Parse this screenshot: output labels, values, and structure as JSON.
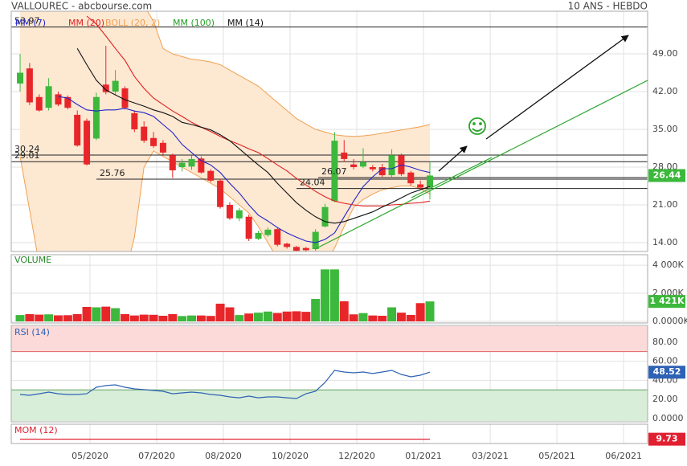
{
  "chart_data": [
    {
      "type": "candlestick",
      "title": "VALLOUREC - abcbourse.com",
      "subtitle": "10 ANS - HEBDO",
      "up_color": "#3cb83c",
      "down_color": "#e8262a",
      "open": [
        43.5,
        46.3,
        41,
        39,
        41.5,
        41,
        37.7,
        36.6,
        33.3,
        43.3,
        42,
        42.6,
        38,
        35.5,
        33.4,
        32.5,
        30.2,
        28,
        28.1,
        29.6,
        27.3,
        25.5,
        21,
        18.5,
        18.8,
        14.7,
        15.4,
        16.5,
        13.8,
        13.2,
        13,
        12.8,
        17,
        21.7,
        30.7,
        28.5,
        28.1,
        28,
        28,
        26.5,
        30.2,
        27,
        24.8,
        24.3
      ],
      "high": [
        49,
        47.3,
        41.5,
        44.5,
        42,
        41.3,
        38.5,
        37,
        41.8,
        50.5,
        46,
        43,
        38.5,
        36.5,
        34.5,
        33,
        30.5,
        29.5,
        30.2,
        30,
        27.6,
        25.8,
        21.5,
        20.4,
        19.2,
        16.2,
        16.8,
        16.8,
        14,
        13.4,
        13.2,
        16.5,
        21.2,
        34.5,
        33,
        29.5,
        31.5,
        28.4,
        28.6,
        31.3,
        30.5,
        27.3,
        25.5,
        29
      ],
      "low": [
        42,
        39.5,
        38.3,
        38.5,
        39.3,
        38.7,
        31.8,
        28.3,
        33,
        41.5,
        41.5,
        38.7,
        34.5,
        32.5,
        31.6,
        30.3,
        26,
        27.2,
        27.5,
        26.8,
        25.2,
        20.3,
        18.2,
        18,
        14.3,
        14.5,
        15.1,
        13.3,
        12.9,
        12.2,
        12.4,
        12.5,
        16.8,
        21.5,
        29,
        27.6,
        27.8,
        27.2,
        26.2,
        26.2,
        26.4,
        24.6,
        23.8,
        22
      ],
      "close": [
        45.5,
        40,
        38.5,
        43,
        39.6,
        39,
        32,
        28.5,
        41,
        41.9,
        44,
        39,
        35,
        32.9,
        31.9,
        30.7,
        27.4,
        28.8,
        29.5,
        27,
        25.5,
        20.6,
        18.5,
        20,
        14.7,
        15.8,
        16.4,
        13.6,
        13.2,
        12.5,
        12.6,
        16,
        20.6,
        32.9,
        29.5,
        28,
        28.9,
        27.6,
        26.5,
        30.2,
        26.7,
        25,
        24.2,
        26.44
      ],
      "series": [
        {
          "name": "MM (7)",
          "color": "#2323c8",
          "values": [
            null,
            null,
            null,
            null,
            41.1,
            40.8,
            39.6,
            38.6,
            38.4,
            38.6,
            38.6,
            38.9,
            38.4,
            38.1,
            37.4,
            35.9,
            34.4,
            32.2,
            30.7,
            29.2,
            28.4,
            27,
            25,
            23.2,
            21,
            19.1,
            18,
            16.8,
            15.8,
            15,
            14.3,
            14,
            14.6,
            15.8,
            18.8,
            21.7,
            24.4,
            26.2,
            27.7,
            27.7,
            28.4,
            28,
            27.4,
            27
          ]
        },
        {
          "name": "MM (20)",
          "color": "#e02020",
          "values": [
            null,
            null,
            null,
            null,
            null,
            null,
            null,
            56,
            54.5,
            52.3,
            50,
            47.8,
            44.8,
            42.6,
            40.8,
            39.6,
            38.4,
            37.4,
            36.3,
            35.4,
            34.6,
            33.7,
            32.9,
            32.2,
            31.4,
            30.7,
            29.6,
            28.4,
            27.3,
            25.9,
            24.7,
            23.5,
            22.5,
            21.7,
            21.3,
            21,
            20.8,
            20.8,
            20.8,
            21,
            21.1,
            21.3,
            21.4,
            21.7
          ]
        },
        {
          "name": "MM (100)",
          "color": "#22a022",
          "values": [
            null,
            null,
            null,
            null,
            null,
            null,
            null,
            null,
            null,
            null,
            null,
            null,
            null,
            null,
            null,
            null,
            null,
            null,
            null,
            null,
            null,
            null,
            null,
            null,
            null,
            null,
            null,
            null,
            null,
            null,
            null,
            null,
            null,
            null,
            null,
            null,
            null,
            null,
            null,
            null,
            null,
            null,
            null,
            null
          ]
        },
        {
          "name": "MM (14)",
          "color": "#111111",
          "values": [
            null,
            null,
            null,
            null,
            null,
            null,
            50,
            47,
            44.1,
            42.3,
            41.4,
            40.5,
            39.9,
            39.3,
            38.6,
            38.1,
            37.4,
            36.3,
            35.9,
            35.4,
            34.9,
            34,
            32.9,
            31.4,
            29.9,
            28.4,
            27,
            25,
            23.2,
            21.4,
            20,
            18.8,
            17.9,
            17.6,
            17.9,
            18.5,
            19.1,
            19.7,
            20.6,
            21.4,
            22.3,
            23.2,
            23.8,
            24.4
          ]
        }
      ],
      "band": {
        "name": "BOLL (20, 2)",
        "color": "#f0a050",
        "fill": "#fde8d2",
        "upper": [
          58,
          58,
          58,
          58,
          58,
          58,
          58,
          58,
          58,
          58,
          58,
          58,
          58,
          58,
          55,
          50,
          49,
          48.5,
          48,
          47.8,
          47.5,
          47,
          46,
          45,
          44,
          43,
          41.5,
          40,
          38.5,
          37,
          36,
          35,
          34.5,
          34,
          33.8,
          33.7,
          33.8,
          34,
          34.3,
          34.6,
          34.9,
          35.2,
          35.5,
          35.9
        ],
        "lower": [
          30,
          20,
          10,
          8,
          8,
          8,
          8,
          8,
          8,
          8,
          8,
          8,
          15,
          28,
          31,
          30,
          29,
          28,
          27,
          26,
          25,
          24,
          22.5,
          21,
          19.5,
          17,
          14,
          11,
          9,
          8,
          8,
          8,
          10,
          13,
          17,
          20.5,
          22,
          23,
          23.8,
          24.2,
          24.5,
          24.5,
          24,
          23
        ]
      },
      "levels": [
        53.97,
        30.24,
        29.01,
        25.76,
        26.07,
        24.04
      ],
      "xlim": [
        -0.93,
        65.85
      ],
      "xticks": [
        {
          "value": 7.33,
          "label": "05/2020"
        },
        {
          "value": 14.33,
          "label": "07/2020"
        },
        {
          "value": 21.33,
          "label": "08/2020"
        },
        {
          "value": 28.33,
          "label": "10/2020"
        },
        {
          "value": 35.33,
          "label": "12/2020"
        },
        {
          "value": 42.33,
          "label": "01/2021"
        },
        {
          "value": 49.33,
          "label": "03/2021"
        },
        {
          "value": 56.33,
          "label": "05/2021"
        },
        {
          "value": 63.33,
          "label": "06/2021"
        }
      ],
      "ylim": [
        12.36,
        56.9
      ],
      "yticks": [
        {
          "value": 49,
          "label": "49.00"
        },
        {
          "value": 42,
          "label": "42.00"
        },
        {
          "value": 35,
          "label": "35.00"
        },
        {
          "value": 28,
          "label": "28.00"
        },
        {
          "value": 21,
          "label": "21.00"
        },
        {
          "value": 14,
          "label": "14.00"
        }
      ],
      "grid": true
    },
    {
      "type": "bar",
      "title": "VOLUME",
      "title_color": "#2a8a2a",
      "values": [
        450,
        520,
        480,
        500,
        430,
        440,
        520,
        1030,
        1000,
        1050,
        940,
        520,
        420,
        480,
        470,
        400,
        520,
        380,
        420,
        420,
        390,
        1260,
        1000,
        450,
        560,
        620,
        700,
        600,
        700,
        720,
        680,
        1600,
        3700,
        3700,
        1430,
        500,
        590,
        420,
        400,
        1000,
        620,
        460,
        1300,
        1421
      ],
      "last_label": "1 421K",
      "ylim": [
        0,
        4690
      ],
      "yticks": [
        {
          "value": 4000,
          "label": "4 000K"
        },
        {
          "value": 2000,
          "label": "2 000K"
        },
        {
          "value": 0,
          "label": "0.0000K"
        }
      ],
      "grid": true
    },
    {
      "type": "line",
      "title": "RSI (14)",
      "color": "#2d62b4",
      "values": [
        25.2,
        24.4,
        26,
        27.7,
        26,
        25.2,
        25.2,
        26,
        32.8,
        34.5,
        35.3,
        32.8,
        31.1,
        30.3,
        29.4,
        28.6,
        26,
        26.9,
        27.7,
        26.9,
        25.2,
        24.4,
        22.7,
        21.8,
        23.5,
        21.8,
        22.7,
        22.7,
        21.8,
        21,
        26,
        28.6,
        37.8,
        50.4,
        48.7,
        47.9,
        48.7,
        47.1,
        48.7,
        50.4,
        46.2,
        43.7,
        45.4,
        48.52
      ],
      "zones": [
        {
          "from": 70,
          "to": 100,
          "color": "#fddada",
          "line": "#e06060"
        },
        {
          "from": -5,
          "to": 30,
          "color": "#d8eed8",
          "line": "#60a060"
        }
      ],
      "ylim": [
        -2.5,
        96.6
      ],
      "yticks": [
        {
          "value": 80,
          "label": "80.00"
        },
        {
          "value": 60,
          "label": "60.00"
        },
        {
          "value": 40,
          "label": "40.00"
        },
        {
          "value": 20,
          "label": "20.00"
        },
        {
          "value": 0,
          "label": "0.0000"
        }
      ],
      "grid": true
    },
    {
      "type": "line",
      "title": "MOM (12)",
      "color": "#e02030",
      "values": [
        9.73,
        9.73,
        9.73,
        9.73,
        9.73,
        9.73,
        9.73,
        9.73,
        9.73,
        9.73,
        9.73,
        9.73,
        9.73,
        9.73,
        9.73,
        9.73,
        9.73,
        9.73,
        9.73,
        9.73,
        9.73,
        9.73,
        9.73,
        9.73,
        9.73,
        9.73,
        9.73,
        9.73,
        9.73,
        9.73,
        9.73,
        9.73,
        9.73,
        9.73,
        9.73,
        9.73,
        9.73,
        9.73,
        9.73,
        9.73,
        9.73,
        9.73,
        9.73,
        9.73
      ],
      "ylim": [
        8.5,
        14
      ]
    }
  ]
}
